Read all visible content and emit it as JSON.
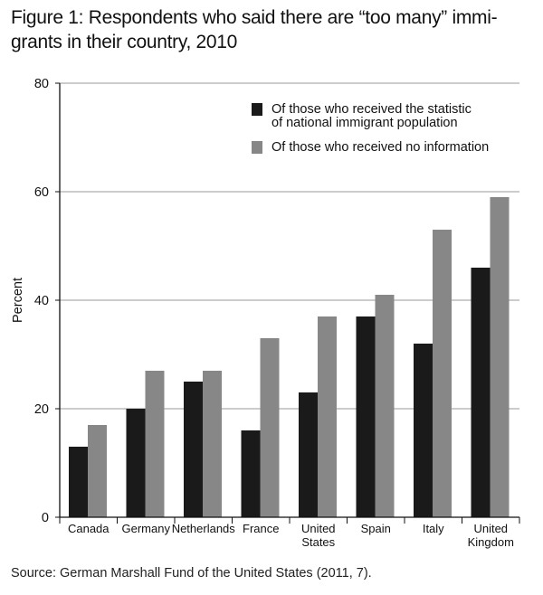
{
  "title_lines": [
    "Figure 1: Respondents who said there are “too many” immi-",
    "grants in their country, 2010"
  ],
  "source": "Source: German Marshall Fund of the United States (2011, 7).",
  "colors": {
    "dark": "#1a1a1a",
    "gray": "#878787",
    "grid": "#9a9a9a",
    "axis": "#111111"
  },
  "chart_data": {
    "type": "bar",
    "title": "Figure 1: Respondents who said there are “too many” immigrants in their country, 2010",
    "xlabel": "",
    "ylabel": "Percent",
    "ylim": [
      0,
      80
    ],
    "yticks": [
      0,
      20,
      40,
      60,
      80
    ],
    "grid": true,
    "legend_position": "top-right",
    "categories": [
      [
        "Canada"
      ],
      [
        "Germany"
      ],
      [
        "Netherlands"
      ],
      [
        "France"
      ],
      [
        "United",
        "States"
      ],
      [
        "Spain"
      ],
      [
        "Italy"
      ],
      [
        "United",
        "Kingdom"
      ]
    ],
    "series": [
      {
        "name_lines": [
          "Of those who received the statistic",
          "of national immigrant population"
        ],
        "color": "#1a1a1a",
        "values": [
          13,
          20,
          25,
          16,
          23,
          37,
          32,
          46
        ]
      },
      {
        "name_lines": [
          "Of those who received no information"
        ],
        "color": "#878787",
        "values": [
          17,
          27,
          27,
          33,
          37,
          41,
          53,
          59
        ]
      }
    ]
  }
}
